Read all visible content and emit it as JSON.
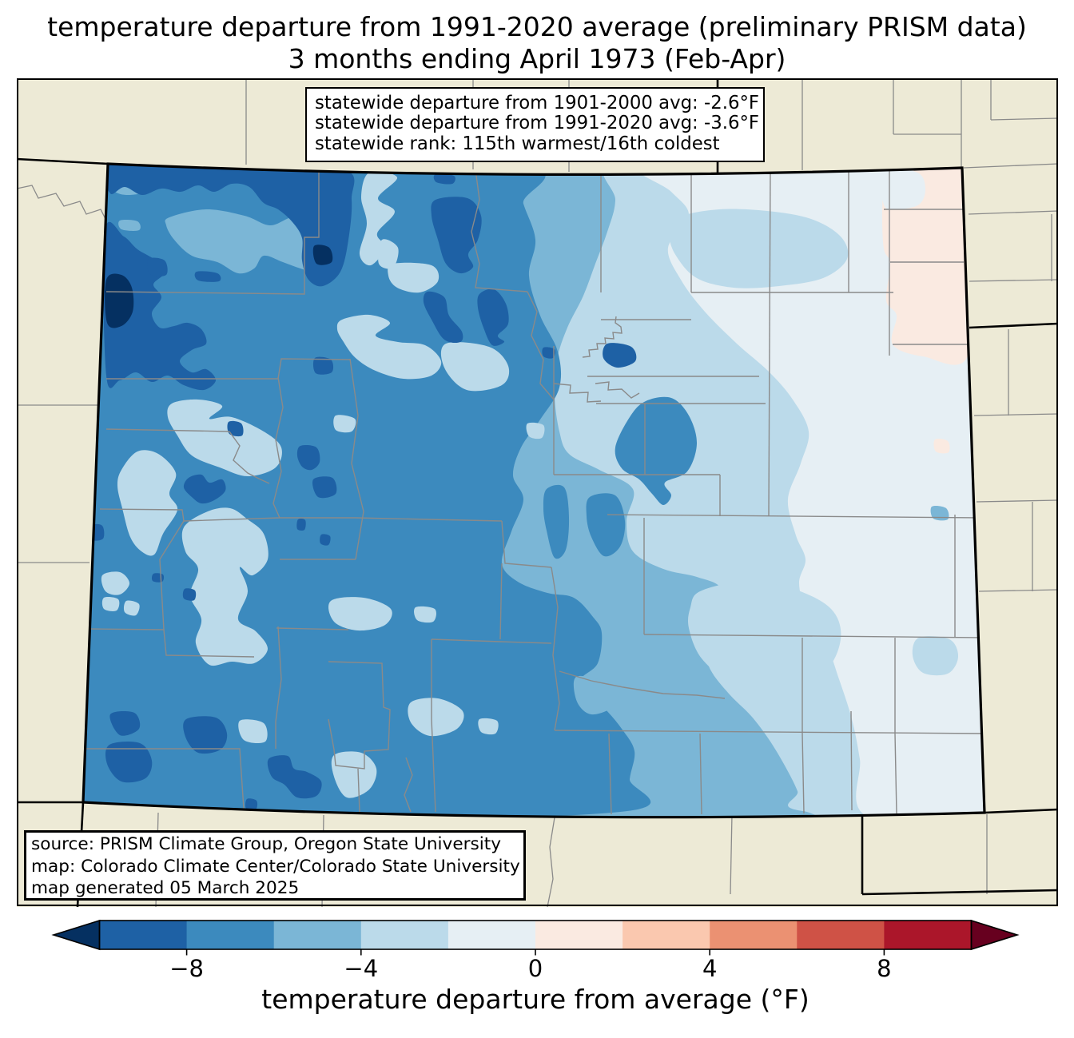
{
  "title": {
    "line1": "temperature departure from 1991-2020 average (preliminary PRISM data)",
    "line2": "3 months ending April 1973 (Feb-Apr)"
  },
  "stats_box": {
    "line1": "statewide departure from 1901-2000 avg: -2.6°F",
    "line2": "statewide departure from 1991-2020 avg: -3.6°F",
    "line3": "statewide rank: 115th warmest/16th coldest",
    "values": {
      "departure_from_1901_2000_avg_F": -2.6,
      "departure_from_1991_2020_avg_F": -3.6,
      "rank_warmest": 115,
      "rank_coldest": 16
    }
  },
  "source_box": {
    "line1": "source: PRISM Climate Group, Oregon State University",
    "line2": "map: Colorado Climate Center/Colorado State University",
    "line3": "map generated 05 March 2025"
  },
  "colorbar": {
    "label": "temperature departure from average (°F)",
    "range": [
      -10,
      10
    ],
    "ticks": [
      {
        "value": -8,
        "label": "−8"
      },
      {
        "value": -4,
        "label": "−4"
      },
      {
        "value": 0,
        "label": "0"
      },
      {
        "value": 4,
        "label": "4"
      },
      {
        "value": 8,
        "label": "8"
      }
    ],
    "segment_colors": [
      "#1e61a5",
      "#3c8abe",
      "#7bb6d6",
      "#bbdaea",
      "#e6eff4",
      "#faeae1",
      "#fac8af",
      "#eb9172",
      "#cf5246",
      "#ab162a"
    ],
    "under_color": "#053061",
    "over_color": "#67001f"
  },
  "map": {
    "region": "Colorado",
    "land_color": "#edead6",
    "county_line_color": "#8a8a8a",
    "state_line_color": "#000000",
    "bin_colors": {
      "below_-8": "#053061",
      "-8_-6": "#1e61a5",
      "-6_-4": "#3c8abe",
      "-4_-2": "#7bb6d6",
      "-2_0": "#bbdaea",
      "0_pale": "#e6eff4",
      "0_2": "#faeae1"
    }
  }
}
